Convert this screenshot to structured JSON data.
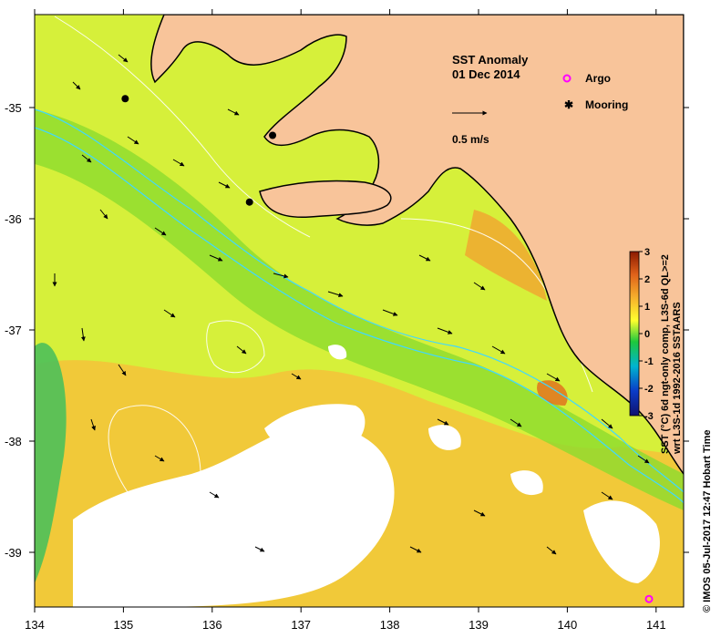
{
  "map": {
    "title": "SST Anomaly",
    "date": "01 Dec 2014",
    "scale_label": "0.5 m/s",
    "legend": {
      "argo": "Argo",
      "mooring": "Mooring"
    },
    "lon_ticks": [
      "134",
      "135",
      "136",
      "137",
      "138",
      "139",
      "140",
      "141"
    ],
    "lat_ticks": [
      "-35",
      "-36",
      "-37",
      "-38",
      "-39"
    ],
    "moorings": [
      {
        "lon": 135.02,
        "lat": -34.92
      },
      {
        "lon": 136.68,
        "lat": -35.25
      },
      {
        "lon": 136.42,
        "lat": -35.85
      }
    ],
    "argo_floats": [
      {
        "lon": 140.92,
        "lat": -39.42
      }
    ],
    "colors": {
      "land": "#f8c49a",
      "no_data": "#ffffff",
      "argo": "#ff00ff",
      "mooring": "#000000",
      "isobath_shelf": "#40d8ff",
      "isobath_deep": "#ffffff"
    }
  },
  "colorbar": {
    "ticks": [
      "3",
      "2",
      "1",
      "0",
      "-1",
      "-2",
      "-3"
    ],
    "label_line1": "SST (°C) 6d ngt-only comp, L3S-6d QL>=2",
    "label_line2": "wrt L3S-1d 1992-2016 SSTAARS",
    "colors": [
      "#8b1a00",
      "#e0621a",
      "#f6b02c",
      "#ffff2e",
      "#1ec83c",
      "#00b4d0",
      "#0a3cc8",
      "#10126e"
    ]
  },
  "footer": {
    "credit": "© IMOS 05-Jul-2017 12:47 Hobart Time"
  }
}
